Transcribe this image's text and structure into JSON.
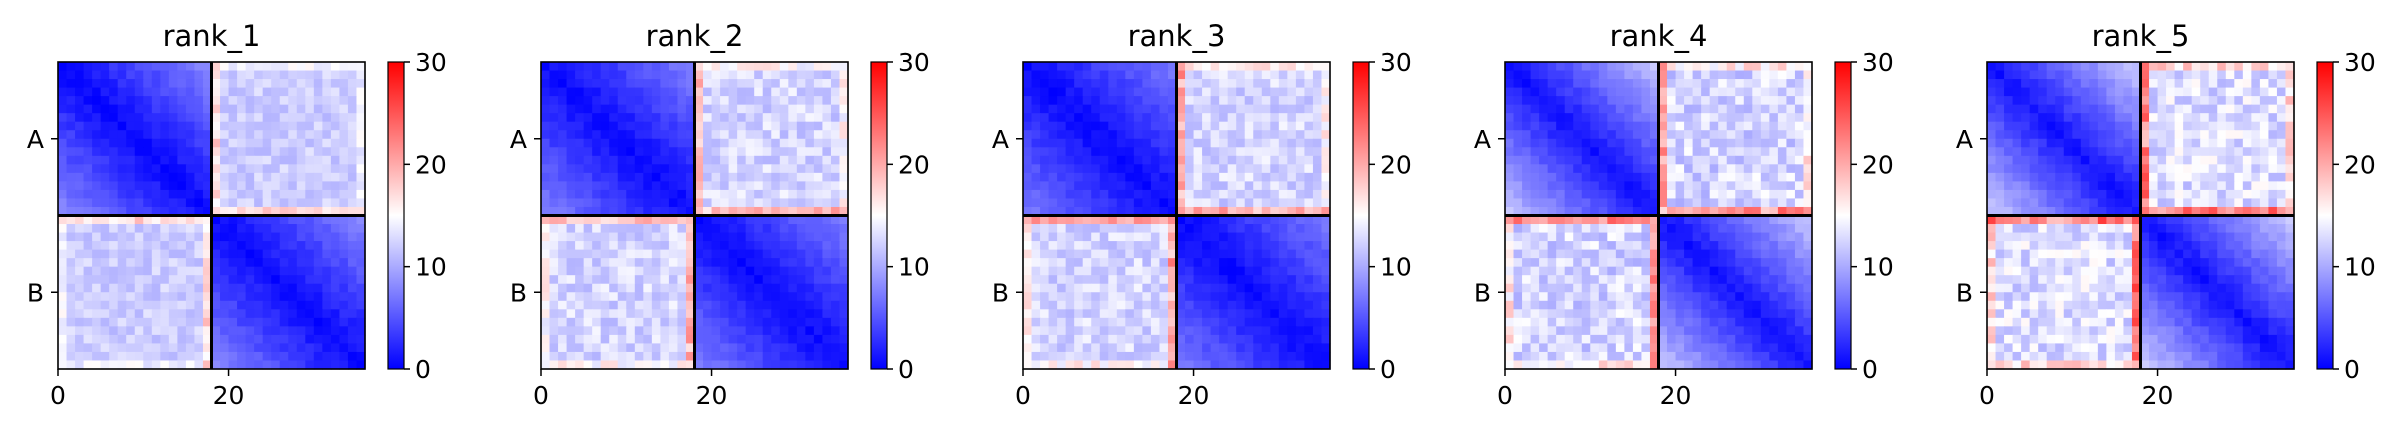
{
  "chart_data": {
    "type": "heatmap",
    "grid_size": 36,
    "block_boundary": 18,
    "colormap": "bwr",
    "color_range": [
      0,
      30
    ],
    "colorbar_ticks": [
      0,
      10,
      20,
      30
    ],
    "x_ticks": [
      0,
      20
    ],
    "y_tick_labels": [
      "A",
      "B"
    ],
    "description_of_values": "distance matrix; within-block values rise from ~0 on the diagonal to ~5-12, cross-block values ~10-17, with higher values (~20-27) along the rows/columns adjacent to the A|B boundary",
    "panels": [
      {
        "title": "rank_1",
        "within_base": 0.5,
        "within_slope": 0.42,
        "cross_base": 12.0,
        "cross_spread": 1.5,
        "edge_boost": 6
      },
      {
        "title": "rank_2",
        "within_base": 0.5,
        "within_slope": 0.4,
        "cross_base": 12.5,
        "cross_spread": 2.0,
        "edge_boost": 8
      },
      {
        "title": "rank_3",
        "within_base": 0.5,
        "within_slope": 0.38,
        "cross_base": 12.5,
        "cross_spread": 2.0,
        "edge_boost": 9
      },
      {
        "title": "rank_4",
        "within_base": 1.0,
        "within_slope": 0.6,
        "cross_base": 12.5,
        "cross_spread": 2.5,
        "edge_boost": 11
      },
      {
        "title": "rank_5",
        "within_base": 1.0,
        "within_slope": 0.62,
        "cross_base": 13.0,
        "cross_spread": 2.5,
        "edge_boost": 12
      }
    ]
  }
}
